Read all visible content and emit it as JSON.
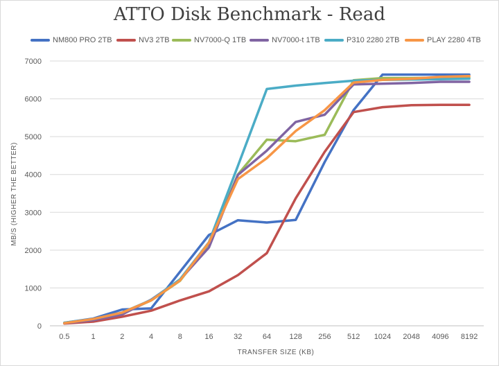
{
  "chart_data": {
    "type": "line",
    "title": "ATTO Disk Benchmark - Read",
    "xlabel": "TRANSFER SIZE (KB)",
    "ylabel": "MB/S (HIGHER THE BETTER)",
    "categories": [
      "0.5",
      "1",
      "2",
      "4",
      "8",
      "16",
      "32",
      "64",
      "128",
      "256",
      "512",
      "1024",
      "2048",
      "4096",
      "8192"
    ],
    "ylim": [
      0,
      7000
    ],
    "yticks": [
      "0",
      "1000",
      "2000",
      "3000",
      "4000",
      "5000",
      "6000",
      "7000"
    ],
    "grid": true,
    "legend_position": "top",
    "series": [
      {
        "name": "NM800 PRO 2TB",
        "color": "#4472c4",
        "values": [
          80,
          190,
          430,
          460,
          1430,
          2400,
          2790,
          2730,
          2800,
          4330,
          5700,
          6640,
          6640,
          6640,
          6640
        ]
      },
      {
        "name": "NV3 2TB",
        "color": "#c0504d",
        "values": [
          60,
          110,
          240,
          400,
          670,
          910,
          1340,
          1920,
          3370,
          4600,
          5650,
          5780,
          5830,
          5840,
          5840
        ]
      },
      {
        "name": "NV7000-Q 1TB",
        "color": "#9bbb59",
        "values": [
          80,
          170,
          330,
          670,
          1190,
          2180,
          4000,
          4920,
          4880,
          5050,
          6490,
          6550,
          6550,
          6560,
          6560
        ]
      },
      {
        "name": "NV7000-t 1TB",
        "color": "#8064a2",
        "values": [
          70,
          150,
          300,
          690,
          1220,
          2070,
          3990,
          4630,
          5390,
          5580,
          6380,
          6400,
          6420,
          6450,
          6450
        ]
      },
      {
        "name": "P310 2280 2TB",
        "color": "#4bacc6",
        "values": [
          80,
          180,
          350,
          680,
          1230,
          2210,
          4230,
          6260,
          6350,
          6420,
          6480,
          6500,
          6510,
          6520,
          6530
        ]
      },
      {
        "name": "PLAY 2280 4TB",
        "color": "#f79646",
        "values": [
          70,
          180,
          350,
          670,
          1200,
          2200,
          3880,
          4430,
          5150,
          5700,
          6430,
          6500,
          6530,
          6580,
          6600
        ]
      }
    ]
  }
}
